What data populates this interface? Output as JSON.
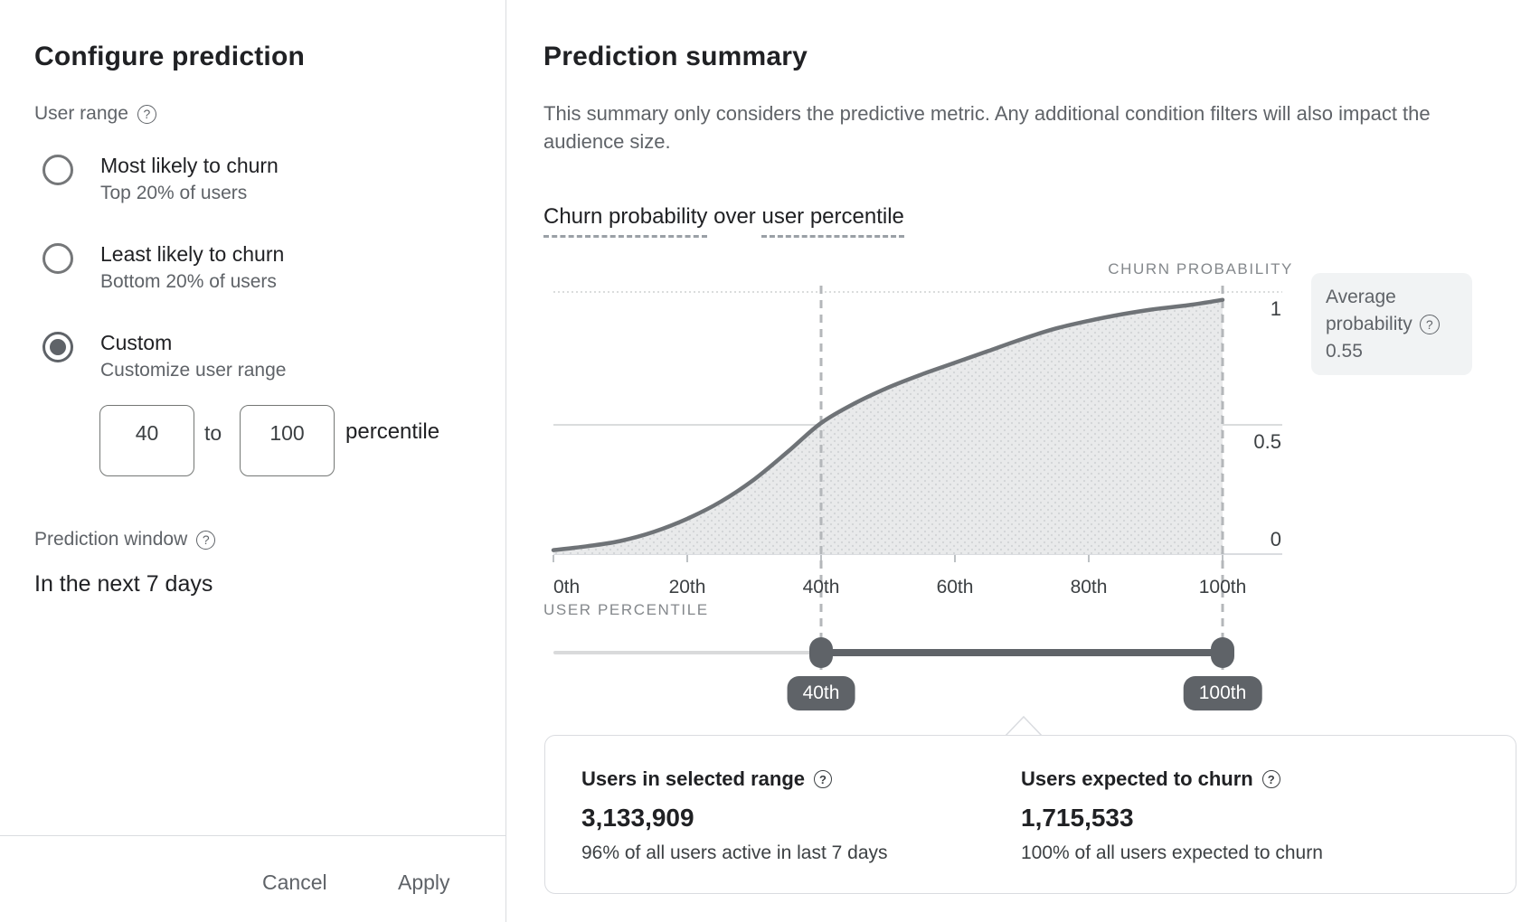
{
  "left_panel": {
    "title": "Configure prediction",
    "user_range_label": "User range",
    "help_glyph": "?",
    "options": [
      {
        "label": "Most likely to churn",
        "description": "Top 20% of users",
        "selected": false
      },
      {
        "label": "Least likely to churn",
        "description": "Bottom 20% of users",
        "selected": false
      },
      {
        "label": "Custom",
        "description": "Customize user range",
        "selected": true
      }
    ],
    "custom_range": {
      "from": "40",
      "to_label": "to",
      "to": "100",
      "unit_label": "percentile"
    },
    "prediction_window_label": "Prediction window",
    "prediction_window_value": "In the next 7 days",
    "cancel_label": "Cancel",
    "apply_label": "Apply"
  },
  "right_panel": {
    "title": "Prediction summary",
    "description": "This summary only considers the predictive metric. Any additional condition filters will also impact the audience size.",
    "heading": {
      "term1": "Churn probability",
      "connector": " over ",
      "term2": "user percentile"
    }
  },
  "chart_data": {
    "type": "area",
    "title": "Churn probability over user percentile",
    "x_axis_label": "USER PERCENTILE",
    "y_axis_label": "CHURN PROBABILITY",
    "x_tick_labels": [
      "0th",
      "20th",
      "40th",
      "60th",
      "80th",
      "100th"
    ],
    "x_tick_values": [
      0,
      20,
      40,
      60,
      80,
      100
    ],
    "y_tick_labels": [
      "0",
      "0.5",
      "1"
    ],
    "y_tick_values": [
      0,
      0.5,
      1
    ],
    "xlim": [
      0,
      100
    ],
    "ylim": [
      0,
      1
    ],
    "grid": "horizontal",
    "x": [
      0,
      5,
      10,
      15,
      20,
      25,
      30,
      35,
      40,
      45,
      50,
      55,
      60,
      65,
      70,
      75,
      80,
      85,
      90,
      95,
      100
    ],
    "values": [
      0.015,
      0.03,
      0.05,
      0.085,
      0.135,
      0.2,
      0.285,
      0.39,
      0.5,
      0.575,
      0.635,
      0.685,
      0.73,
      0.775,
      0.82,
      0.86,
      0.89,
      0.915,
      0.935,
      0.95,
      0.97
    ],
    "selected_range": [
      40,
      100
    ]
  },
  "slider": {
    "start": 40,
    "end": 100,
    "start_label": "40th",
    "end_label": "100th"
  },
  "average_probability": {
    "line1": "Average",
    "line2": "probability",
    "value": "0.55"
  },
  "stats": [
    {
      "label": "Users in selected range",
      "value": "3,133,909",
      "description": "96% of all users active in last 7 days"
    },
    {
      "label": "Users expected to churn",
      "value": "1,715,533",
      "description": "100% of all users expected to churn"
    }
  ],
  "colors": {
    "text_primary": "#202124",
    "text_secondary": "#5f6368",
    "axis_caption": "#84888c",
    "curve_line": "#6f7377",
    "area_fill": "#e9eaeb",
    "selection_dark": "#5f6368",
    "track_light": "#d9dadb",
    "dashed_guide": "#b4b7ba",
    "border": "#dadce0",
    "avg_box_bg": "#f1f3f4"
  }
}
